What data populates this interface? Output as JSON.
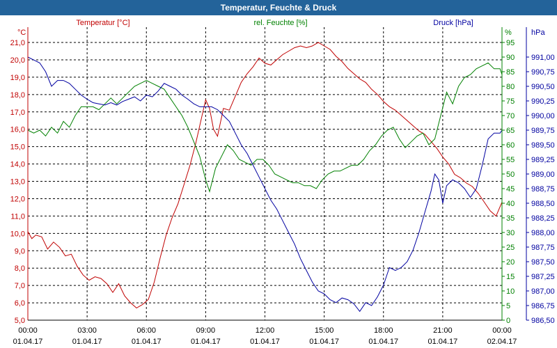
{
  "colors": {
    "temperature": "#c00000",
    "humidity": "#008000",
    "pressure": "#0000a0",
    "titlebar": "#23639a"
  },
  "chart_data": {
    "type": "line",
    "title": "Temperatur, Feuchte & Druck",
    "x_time_labels": [
      "00:00",
      "03:00",
      "06:00",
      "09:00",
      "12:00",
      "15:00",
      "18:00",
      "21:00",
      "00:00"
    ],
    "x_date_labels": [
      "01.04.17",
      "01.04.17",
      "01.04.17",
      "01.04.17",
      "01.04.17",
      "01.04.17",
      "01.04.17",
      "01.04.17",
      "02.04.17"
    ],
    "x_range_hours": [
      0,
      24
    ],
    "grid": true,
    "axes": {
      "temperature": {
        "unit": "°C",
        "range": [
          5,
          21
        ],
        "ticks": [
          "21,0",
          "20,0",
          "19,0",
          "18,0",
          "17,0",
          "16,0",
          "15,0",
          "14,0",
          "13,0",
          "12,0",
          "11,0",
          "10,0",
          "9,0",
          "8,0",
          "7,0",
          "6,0",
          "5,0"
        ]
      },
      "humidity": {
        "unit": "%",
        "range": [
          0,
          95
        ],
        "ticks": [
          "95",
          "90",
          "85",
          "80",
          "75",
          "70",
          "65",
          "60",
          "55",
          "50",
          "45",
          "40",
          "35",
          "30",
          "25",
          "20",
          "15",
          "10",
          "5",
          "0"
        ]
      },
      "pressure": {
        "unit": "hPa",
        "range": [
          986.5,
          991.25
        ],
        "ticks": [
          "991,00",
          "990,75",
          "990,50",
          "990,25",
          "990,00",
          "989,75",
          "989,50",
          "989,25",
          "989,00",
          "988,75",
          "988,50",
          "988,25",
          "988,00",
          "987,75",
          "987,50",
          "987,25",
          "987,00",
          "986,75",
          "986,50"
        ]
      }
    },
    "series": [
      {
        "name": "Temperatur [°C]",
        "axis": "temperature",
        "color": "#c00000",
        "points": [
          [
            0,
            10.1
          ],
          [
            0.2,
            9.7
          ],
          [
            0.4,
            9.9
          ],
          [
            0.7,
            9.8
          ],
          [
            1.0,
            9.1
          ],
          [
            1.3,
            9.5
          ],
          [
            1.6,
            9.2
          ],
          [
            1.9,
            8.7
          ],
          [
            2.2,
            8.8
          ],
          [
            2.5,
            8.1
          ],
          [
            2.8,
            7.6
          ],
          [
            3.1,
            7.3
          ],
          [
            3.4,
            7.5
          ],
          [
            3.7,
            7.4
          ],
          [
            4.0,
            7.1
          ],
          [
            4.3,
            6.6
          ],
          [
            4.6,
            7.1
          ],
          [
            4.9,
            6.4
          ],
          [
            5.2,
            6.0
          ],
          [
            5.5,
            5.7
          ],
          [
            5.8,
            5.9
          ],
          [
            6.1,
            6.2
          ],
          [
            6.4,
            7.2
          ],
          [
            6.7,
            8.6
          ],
          [
            7.0,
            9.9
          ],
          [
            7.3,
            10.9
          ],
          [
            7.6,
            11.7
          ],
          [
            7.9,
            12.8
          ],
          [
            8.2,
            13.9
          ],
          [
            8.5,
            15.2
          ],
          [
            8.8,
            16.7
          ],
          [
            9.0,
            17.7
          ],
          [
            9.2,
            17.2
          ],
          [
            9.4,
            16.0
          ],
          [
            9.6,
            15.6
          ],
          [
            9.9,
            17.2
          ],
          [
            10.2,
            17.1
          ],
          [
            10.5,
            17.9
          ],
          [
            10.8,
            18.7
          ],
          [
            11.1,
            19.2
          ],
          [
            11.4,
            19.6
          ],
          [
            11.7,
            20.1
          ],
          [
            12.0,
            19.8
          ],
          [
            12.3,
            19.7
          ],
          [
            12.6,
            20.0
          ],
          [
            12.9,
            20.3
          ],
          [
            13.2,
            20.5
          ],
          [
            13.5,
            20.7
          ],
          [
            13.8,
            20.8
          ],
          [
            14.1,
            20.7
          ],
          [
            14.4,
            20.8
          ],
          [
            14.7,
            21.0
          ],
          [
            15.0,
            20.8
          ],
          [
            15.3,
            20.6
          ],
          [
            15.6,
            20.2
          ],
          [
            15.9,
            19.9
          ],
          [
            16.2,
            19.5
          ],
          [
            16.5,
            19.2
          ],
          [
            16.8,
            18.9
          ],
          [
            17.1,
            18.7
          ],
          [
            17.4,
            18.3
          ],
          [
            17.7,
            18.0
          ],
          [
            18.0,
            17.6
          ],
          [
            18.3,
            17.3
          ],
          [
            18.6,
            17.1
          ],
          [
            18.9,
            16.8
          ],
          [
            19.2,
            16.5
          ],
          [
            19.5,
            16.2
          ],
          [
            19.8,
            15.9
          ],
          [
            20.1,
            15.7
          ],
          [
            20.4,
            15.3
          ],
          [
            20.7,
            14.9
          ],
          [
            21.0,
            14.4
          ],
          [
            21.3,
            14.0
          ],
          [
            21.6,
            13.4
          ],
          [
            21.9,
            13.2
          ],
          [
            22.2,
            12.9
          ],
          [
            22.5,
            12.7
          ],
          [
            22.8,
            12.3
          ],
          [
            23.1,
            11.8
          ],
          [
            23.4,
            11.3
          ],
          [
            23.7,
            11.0
          ],
          [
            24.0,
            11.8
          ]
        ]
      },
      {
        "name": "rel. Feuchte [%]",
        "axis": "humidity",
        "color": "#008000",
        "points": [
          [
            0,
            65
          ],
          [
            0.3,
            64
          ],
          [
            0.6,
            65
          ],
          [
            0.9,
            63
          ],
          [
            1.2,
            66
          ],
          [
            1.5,
            64
          ],
          [
            1.8,
            68
          ],
          [
            2.1,
            66
          ],
          [
            2.4,
            70
          ],
          [
            2.7,
            73
          ],
          [
            3.0,
            73
          ],
          [
            3.3,
            73
          ],
          [
            3.6,
            72
          ],
          [
            3.9,
            74
          ],
          [
            4.2,
            76
          ],
          [
            4.5,
            74
          ],
          [
            4.8,
            76
          ],
          [
            5.1,
            78
          ],
          [
            5.4,
            80
          ],
          [
            5.7,
            81
          ],
          [
            6.0,
            82
          ],
          [
            6.3,
            81
          ],
          [
            6.6,
            80
          ],
          [
            6.9,
            79
          ],
          [
            7.2,
            76
          ],
          [
            7.5,
            73
          ],
          [
            7.8,
            70
          ],
          [
            8.1,
            66
          ],
          [
            8.4,
            61
          ],
          [
            8.7,
            56
          ],
          [
            9.0,
            48
          ],
          [
            9.2,
            44
          ],
          [
            9.5,
            52
          ],
          [
            9.8,
            56
          ],
          [
            10.1,
            60
          ],
          [
            10.4,
            58
          ],
          [
            10.7,
            55
          ],
          [
            11.0,
            54
          ],
          [
            11.3,
            53
          ],
          [
            11.6,
            55
          ],
          [
            11.9,
            55
          ],
          [
            12.2,
            53
          ],
          [
            12.5,
            50
          ],
          [
            12.8,
            49
          ],
          [
            13.1,
            48
          ],
          [
            13.4,
            47
          ],
          [
            13.7,
            47
          ],
          [
            14.0,
            46
          ],
          [
            14.3,
            46
          ],
          [
            14.6,
            45
          ],
          [
            14.9,
            48
          ],
          [
            15.2,
            50
          ],
          [
            15.5,
            51
          ],
          [
            15.8,
            51
          ],
          [
            16.1,
            52
          ],
          [
            16.4,
            53
          ],
          [
            16.7,
            53
          ],
          [
            17.0,
            55
          ],
          [
            17.3,
            58
          ],
          [
            17.6,
            60
          ],
          [
            17.9,
            63
          ],
          [
            18.2,
            65
          ],
          [
            18.5,
            66
          ],
          [
            18.8,
            62
          ],
          [
            19.1,
            59
          ],
          [
            19.4,
            61
          ],
          [
            19.7,
            63
          ],
          [
            20.0,
            64
          ],
          [
            20.3,
            60
          ],
          [
            20.6,
            62
          ],
          [
            20.9,
            70
          ],
          [
            21.2,
            78
          ],
          [
            21.5,
            74
          ],
          [
            21.8,
            80
          ],
          [
            22.1,
            83
          ],
          [
            22.4,
            84
          ],
          [
            22.7,
            86
          ],
          [
            23.0,
            87
          ],
          [
            23.3,
            88
          ],
          [
            23.6,
            86
          ],
          [
            23.9,
            86
          ],
          [
            24.0,
            84
          ]
        ]
      },
      {
        "name": "Druck [hPa]",
        "axis": "pressure",
        "color": "#0000a0",
        "points": [
          [
            0,
            991.0
          ],
          [
            0.3,
            990.95
          ],
          [
            0.6,
            990.9
          ],
          [
            0.9,
            990.75
          ],
          [
            1.2,
            990.5
          ],
          [
            1.5,
            990.6
          ],
          [
            1.8,
            990.6
          ],
          [
            2.1,
            990.55
          ],
          [
            2.4,
            990.45
          ],
          [
            2.7,
            990.35
          ],
          [
            3.0,
            990.28
          ],
          [
            3.3,
            990.22
          ],
          [
            3.6,
            990.2
          ],
          [
            3.9,
            990.18
          ],
          [
            4.2,
            990.22
          ],
          [
            4.5,
            990.18
          ],
          [
            4.8,
            990.24
          ],
          [
            5.1,
            990.28
          ],
          [
            5.4,
            990.32
          ],
          [
            5.7,
            990.25
          ],
          [
            6.0,
            990.35
          ],
          [
            6.3,
            990.32
          ],
          [
            6.6,
            990.42
          ],
          [
            6.9,
            990.55
          ],
          [
            7.2,
            990.5
          ],
          [
            7.5,
            990.45
          ],
          [
            7.8,
            990.35
          ],
          [
            8.1,
            990.28
          ],
          [
            8.4,
            990.2
          ],
          [
            8.7,
            990.15
          ],
          [
            9.0,
            990.15
          ],
          [
            9.3,
            990.15
          ],
          [
            9.6,
            990.1
          ],
          [
            9.9,
            990.0
          ],
          [
            10.2,
            989.9
          ],
          [
            10.5,
            989.7
          ],
          [
            10.8,
            989.5
          ],
          [
            11.1,
            989.35
          ],
          [
            11.4,
            989.15
          ],
          [
            11.7,
            988.95
          ],
          [
            12.0,
            988.75
          ],
          [
            12.3,
            988.55
          ],
          [
            12.6,
            988.4
          ],
          [
            12.9,
            988.2
          ],
          [
            13.2,
            988.0
          ],
          [
            13.5,
            987.8
          ],
          [
            13.8,
            987.55
          ],
          [
            14.1,
            987.35
          ],
          [
            14.4,
            987.15
          ],
          [
            14.7,
            987.0
          ],
          [
            15.0,
            986.95
          ],
          [
            15.3,
            986.85
          ],
          [
            15.6,
            986.8
          ],
          [
            15.9,
            986.88
          ],
          [
            16.2,
            986.85
          ],
          [
            16.5,
            986.78
          ],
          [
            16.8,
            986.65
          ],
          [
            17.1,
            986.8
          ],
          [
            17.4,
            986.75
          ],
          [
            17.7,
            986.9
          ],
          [
            18.0,
            987.1
          ],
          [
            18.3,
            987.4
          ],
          [
            18.6,
            987.35
          ],
          [
            18.9,
            987.4
          ],
          [
            19.2,
            987.5
          ],
          [
            19.5,
            987.7
          ],
          [
            19.8,
            988.0
          ],
          [
            20.1,
            988.35
          ],
          [
            20.4,
            988.7
          ],
          [
            20.6,
            989.0
          ],
          [
            20.8,
            988.9
          ],
          [
            21.0,
            988.5
          ],
          [
            21.2,
            988.8
          ],
          [
            21.5,
            988.9
          ],
          [
            21.8,
            988.85
          ],
          [
            22.1,
            988.75
          ],
          [
            22.4,
            988.6
          ],
          [
            22.7,
            988.75
          ],
          [
            23.0,
            989.15
          ],
          [
            23.3,
            989.6
          ],
          [
            23.6,
            989.7
          ],
          [
            23.9,
            989.7
          ],
          [
            24.0,
            989.75
          ]
        ]
      }
    ]
  }
}
